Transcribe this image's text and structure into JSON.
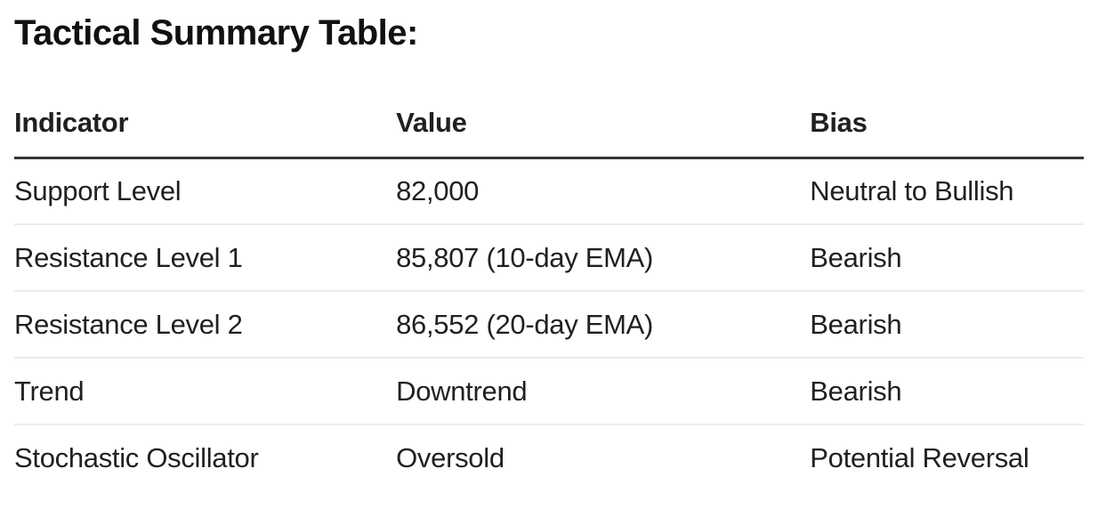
{
  "title": "Tactical Summary Table:",
  "table": {
    "columns": [
      "Indicator",
      "Value",
      "Bias"
    ],
    "rows": [
      [
        "Support Level",
        "82,000",
        "Neutral to Bullish"
      ],
      [
        "Resistance Level 1",
        "85,807 (10-day EMA)",
        "Bearish"
      ],
      [
        "Resistance Level 2",
        "86,552 (20-day EMA)",
        "Bearish"
      ],
      [
        "Trend",
        "Downtrend",
        "Bearish"
      ],
      [
        "Stochastic Oscillator",
        "Oversold",
        "Potential Reversal"
      ]
    ]
  },
  "colors": {
    "text": "#1f2022",
    "header_rule": "#333333",
    "row_rule": "#ececec",
    "background": "#ffffff"
  }
}
